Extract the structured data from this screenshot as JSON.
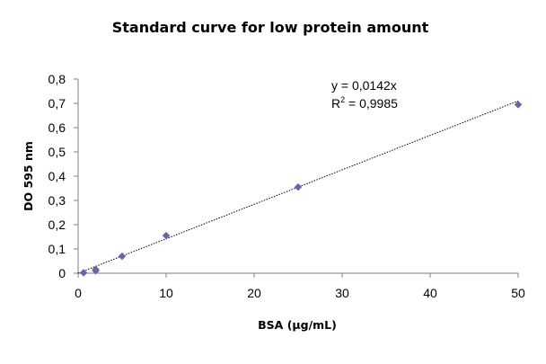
{
  "chart_data": {
    "type": "scatter",
    "title": "Standard curve for low protein amount",
    "xlabel": "BSA (µg/mL)",
    "ylabel": "DO 595 nm",
    "xlim": [
      0,
      50
    ],
    "ylim": [
      0,
      0.8
    ],
    "x_ticks": [
      0,
      10,
      20,
      30,
      40,
      50
    ],
    "y_ticks": [
      0,
      0.1,
      0.2,
      0.3,
      0.4,
      0.5,
      0.6,
      0.7,
      0.8
    ],
    "x_tick_labels": [
      "0",
      "10",
      "20",
      "30",
      "40",
      "50"
    ],
    "y_tick_labels": [
      "0",
      "0,1",
      "0,2",
      "0,3",
      "0,4",
      "0,5",
      "0,6",
      "0,7",
      "0,8"
    ],
    "grid": false,
    "series": [
      {
        "points": [
          {
            "x": 0.625,
            "y": 0.002
          },
          {
            "x": 2,
            "y": 0.015
          },
          {
            "x": 2,
            "y": 0.01
          },
          {
            "x": 5,
            "y": 0.07
          },
          {
            "x": 10,
            "y": 0.155
          },
          {
            "x": 25,
            "y": 0.355
          },
          {
            "x": 50,
            "y": 0.695
          }
        ],
        "marker": "diamond",
        "color": "#7060a8"
      }
    ],
    "trendline": {
      "slope": 0.0142,
      "intercept": 0,
      "x_range": [
        0,
        50
      ],
      "style": "dotted",
      "color": "#000000"
    },
    "annotations": {
      "equation": "y = 0,0142x",
      "r2_prefix": "R",
      "r2_exp": "2",
      "r2_value": " = 0,9985"
    }
  }
}
